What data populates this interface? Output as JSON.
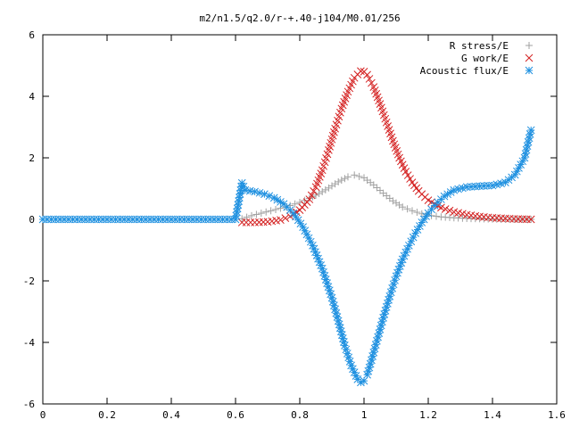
{
  "chart_data": {
    "type": "scatter",
    "title": "m2/n1.5/q2.0/r-+.40-j104/M0.01/256",
    "xlabel": "",
    "ylabel": "",
    "xlim": [
      0,
      1.6
    ],
    "ylim": [
      -6,
      6
    ],
    "xticks": [
      0,
      0.2,
      0.4,
      0.6,
      0.8,
      1,
      1.2,
      1.4,
      1.6
    ],
    "yticks": [
      -6,
      -4,
      -2,
      0,
      2,
      4,
      6
    ],
    "xtick_labels": [
      "0",
      "0.2",
      "0.4",
      "0.6",
      "0.8",
      "1",
      "1.2",
      "1.4",
      "1.6"
    ],
    "ytick_labels": [
      "-6",
      "-4",
      "-2",
      "0",
      "2",
      "4",
      "6"
    ],
    "grid": false,
    "legend_position": "top-right",
    "series": [
      {
        "name": "R stress/E",
        "marker": "plus",
        "color": "#a0a0a0",
        "x": [
          0.62,
          0.65,
          0.68,
          0.71,
          0.74,
          0.77,
          0.8,
          0.83,
          0.86,
          0.89,
          0.92,
          0.95,
          0.97,
          1.0,
          1.03,
          1.06,
          1.09,
          1.12,
          1.15,
          1.18,
          1.21,
          1.24,
          1.28,
          1.32,
          1.36,
          1.4,
          1.44,
          1.48,
          1.52
        ],
        "y": [
          0.02,
          0.12,
          0.2,
          0.28,
          0.36,
          0.45,
          0.55,
          0.68,
          0.84,
          1.02,
          1.22,
          1.38,
          1.44,
          1.35,
          1.12,
          0.85,
          0.6,
          0.4,
          0.28,
          0.18,
          0.12,
          0.08,
          0.05,
          0.03,
          0.02,
          0.01,
          0.0,
          0.0,
          0.0
        ]
      },
      {
        "name": "G work/E",
        "marker": "cross",
        "color": "#d42020",
        "x": [
          0.62,
          0.66,
          0.7,
          0.74,
          0.77,
          0.8,
          0.83,
          0.85,
          0.87,
          0.89,
          0.91,
          0.93,
          0.95,
          0.97,
          0.99,
          1.0,
          1.01,
          1.03,
          1.05,
          1.07,
          1.09,
          1.11,
          1.13,
          1.15,
          1.17,
          1.2,
          1.24,
          1.28,
          1.32,
          1.36,
          1.4,
          1.44,
          1.48,
          1.52
        ],
        "y": [
          -0.1,
          -0.1,
          -0.08,
          -0.02,
          0.1,
          0.3,
          0.65,
          1.05,
          1.6,
          2.25,
          2.95,
          3.6,
          4.15,
          4.6,
          4.82,
          4.8,
          4.7,
          4.3,
          3.75,
          3.15,
          2.55,
          2.0,
          1.55,
          1.2,
          0.92,
          0.62,
          0.38,
          0.24,
          0.15,
          0.09,
          0.05,
          0.03,
          0.01,
          0.0
        ]
      },
      {
        "name": "Acoustic flux/E",
        "marker": "star",
        "color": "#1e90e0",
        "x": [
          0.0,
          0.04,
          0.08,
          0.12,
          0.16,
          0.2,
          0.24,
          0.28,
          0.32,
          0.36,
          0.4,
          0.44,
          0.48,
          0.52,
          0.56,
          0.6,
          0.62,
          0.63,
          0.66,
          0.69,
          0.72,
          0.75,
          0.78,
          0.81,
          0.84,
          0.87,
          0.9,
          0.92,
          0.94,
          0.96,
          0.98,
          0.99,
          1.0,
          1.01,
          1.02,
          1.04,
          1.06,
          1.08,
          1.1,
          1.12,
          1.14,
          1.16,
          1.18,
          1.2,
          1.22,
          1.25,
          1.28,
          1.32,
          1.36,
          1.4,
          1.44,
          1.47,
          1.5,
          1.52
        ],
        "y": [
          0.0,
          0.0,
          0.0,
          0.0,
          0.0,
          0.0,
          0.0,
          0.0,
          0.0,
          0.0,
          0.0,
          0.0,
          0.0,
          0.0,
          0.0,
          0.0,
          1.18,
          0.95,
          0.9,
          0.82,
          0.7,
          0.5,
          0.2,
          -0.25,
          -0.85,
          -1.6,
          -2.55,
          -3.3,
          -4.1,
          -4.75,
          -5.2,
          -5.3,
          -5.25,
          -5.05,
          -4.7,
          -3.95,
          -3.2,
          -2.5,
          -1.85,
          -1.3,
          -0.85,
          -0.45,
          -0.1,
          0.2,
          0.45,
          0.75,
          0.95,
          1.05,
          1.08,
          1.1,
          1.2,
          1.45,
          2.0,
          2.9
        ]
      }
    ]
  }
}
